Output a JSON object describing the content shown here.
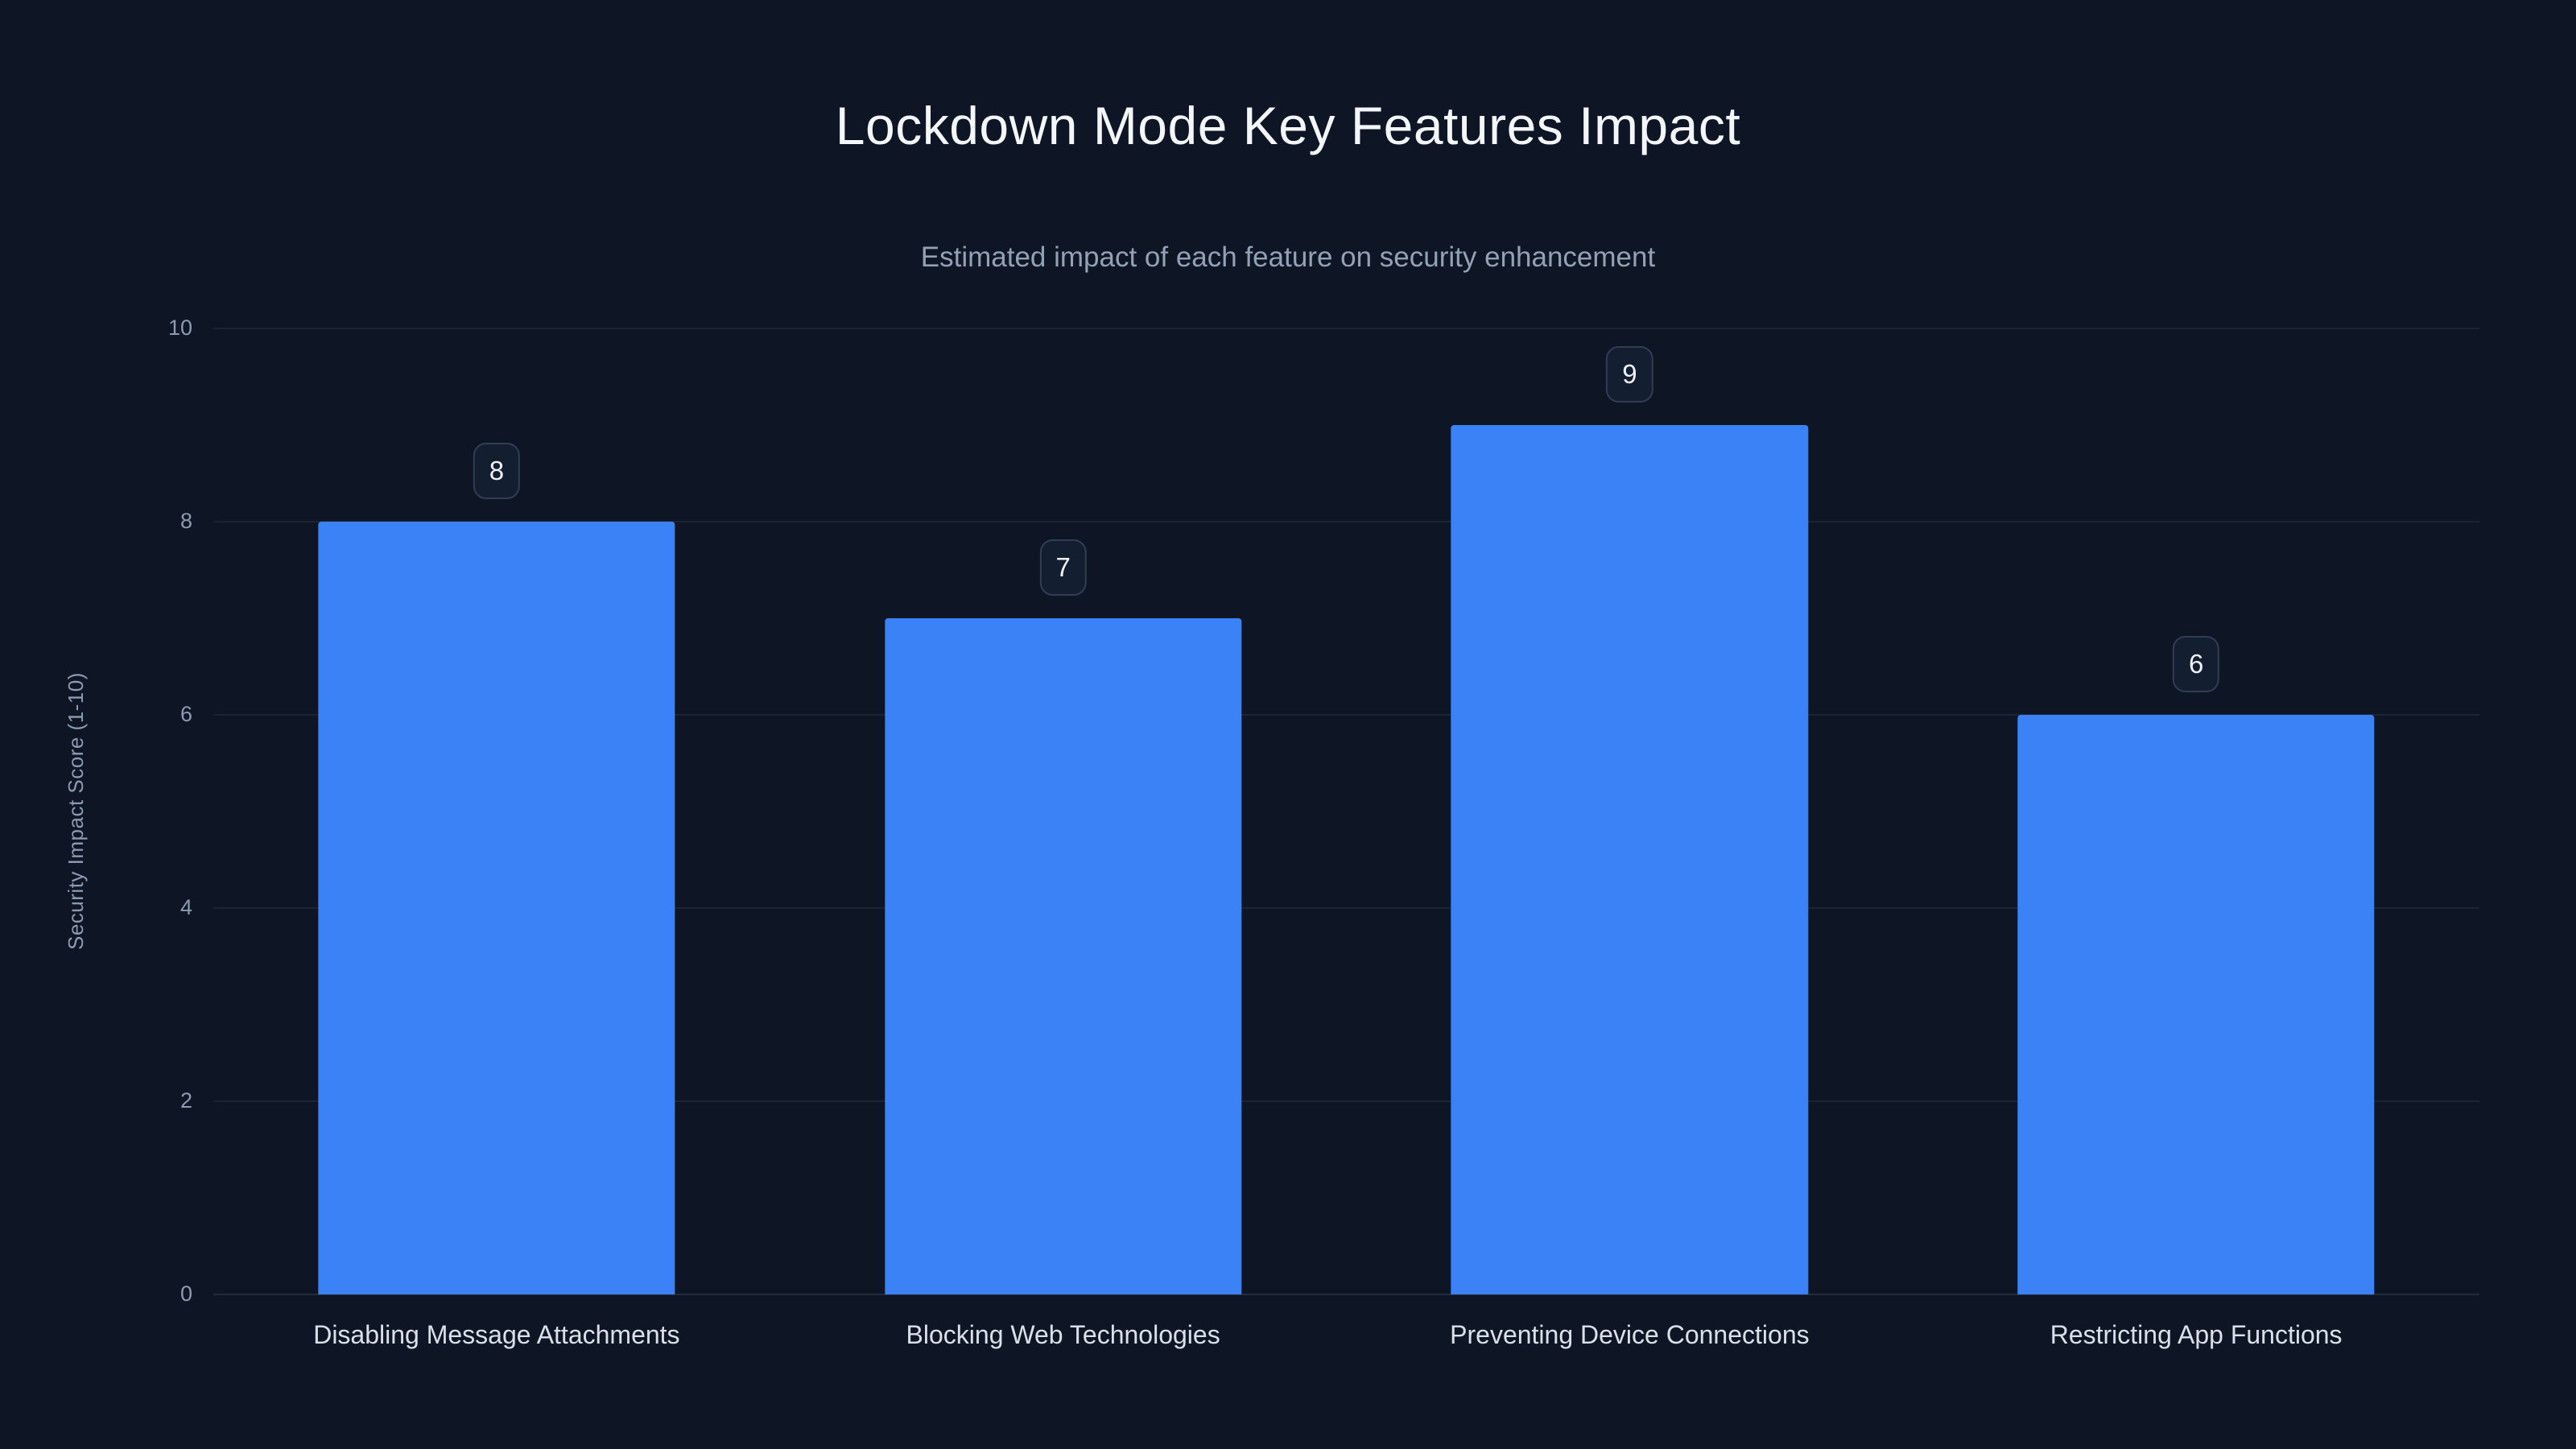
{
  "chart_data": {
    "type": "bar",
    "title": "Lockdown Mode Key Features Impact",
    "subtitle": "Estimated impact of each feature on security enhancement",
    "categories": [
      "Disabling Message Attachments",
      "Blocking Web Technologies",
      "Preventing Device Connections",
      "Restricting App Functions"
    ],
    "values": [
      8,
      7,
      9,
      6
    ],
    "value_labels": [
      "8",
      "7",
      "9",
      "6"
    ],
    "xlabel": "",
    "ylabel": "Security Impact Score (1-10)",
    "ylim": [
      0,
      10
    ],
    "yticks": [
      0,
      2,
      4,
      6,
      8,
      10
    ],
    "grid": true,
    "legend": false,
    "colors": {
      "background": "#0e1626",
      "bar": "#3b82f6",
      "badge_background": "#141e31",
      "badge_border": "#313d55",
      "grid_line": "rgba(148,163,184,0.10)",
      "title_text": "#f3f6fa",
      "subtitle_text": "#93a1b5",
      "tick_text": "#8c9bb0",
      "category_text": "#d9e0ea"
    }
  }
}
